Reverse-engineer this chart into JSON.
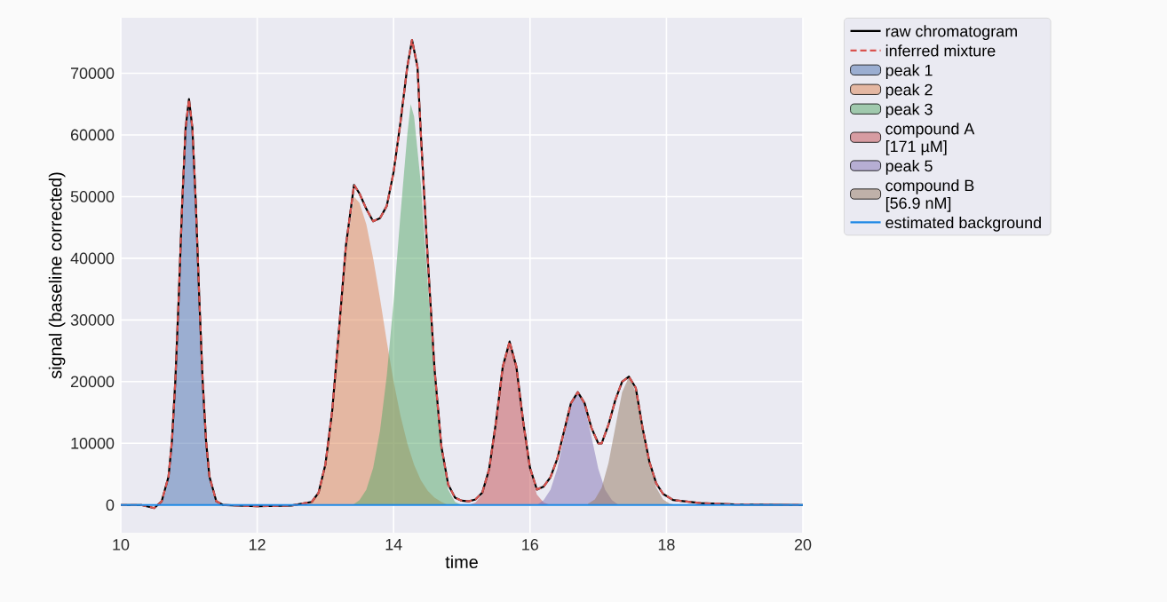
{
  "chart_data": {
    "type": "area",
    "xlabel": "time",
    "ylabel": "signal (baseline corrected)",
    "xlim": [
      10,
      20
    ],
    "ylim": [
      -4500,
      79000
    ],
    "xticks": [
      10,
      12,
      14,
      16,
      18,
      20
    ],
    "yticks": [
      0,
      10000,
      20000,
      30000,
      40000,
      50000,
      60000,
      70000
    ],
    "grid": true,
    "legend": "right",
    "series": [
      {
        "name": "raw chromatogram",
        "type": "line",
        "color": "#000000",
        "x": [
          10.0,
          10.3,
          10.49,
          10.6,
          10.7,
          10.75,
          10.8,
          10.85,
          10.9,
          10.95,
          11.0,
          11.05,
          11.1,
          11.15,
          11.2,
          11.25,
          11.3,
          11.4,
          11.5,
          12.0,
          12.5,
          12.8,
          12.9,
          13.0,
          13.1,
          13.2,
          13.3,
          13.42,
          13.5,
          13.6,
          13.7,
          13.8,
          13.9,
          14.0,
          14.1,
          14.2,
          14.27,
          14.35,
          14.4,
          14.5,
          14.6,
          14.7,
          14.8,
          14.9,
          15.0,
          15.1,
          15.2,
          15.3,
          15.4,
          15.5,
          15.6,
          15.7,
          15.8,
          15.9,
          16.0,
          16.1,
          16.2,
          16.3,
          16.4,
          16.5,
          16.6,
          16.7,
          16.8,
          16.9,
          17.0,
          17.05,
          17.15,
          17.25,
          17.35,
          17.45,
          17.55,
          17.65,
          17.75,
          17.85,
          17.95,
          18.1,
          18.5,
          19.0,
          20.0
        ],
        "values": [
          0,
          0,
          -500,
          600,
          4600,
          10400,
          20200,
          33800,
          48900,
          61100,
          65800,
          61100,
          48900,
          33800,
          20200,
          10400,
          4600,
          600,
          0,
          -200,
          -100,
          500,
          2000,
          6600,
          15300,
          28500,
          42000,
          51900,
          50500,
          48000,
          46000,
          46500,
          48500,
          54000,
          62000,
          71000,
          75400,
          71000,
          60000,
          40000,
          22000,
          9500,
          3300,
          1200,
          700,
          600,
          900,
          2000,
          5800,
          13400,
          22400,
          26500,
          22400,
          13500,
          6000,
          2500,
          3000,
          4500,
          7500,
          12000,
          16500,
          18300,
          16500,
          12500,
          10000,
          10000,
          13000,
          17000,
          20000,
          20800,
          19000,
          12500,
          7000,
          3500,
          1800,
          800,
          300,
          100,
          0
        ]
      },
      {
        "name": "inferred mixture",
        "type": "line",
        "line_style": "dashed",
        "color": "#d9534f",
        "x": [
          10.0,
          10.3,
          10.49,
          10.6,
          10.7,
          10.75,
          10.8,
          10.85,
          10.9,
          10.95,
          11.0,
          11.05,
          11.1,
          11.15,
          11.2,
          11.25,
          11.3,
          11.4,
          11.5,
          12.0,
          12.5,
          12.8,
          12.9,
          13.0,
          13.1,
          13.2,
          13.3,
          13.42,
          13.5,
          13.6,
          13.7,
          13.8,
          13.9,
          14.0,
          14.1,
          14.2,
          14.27,
          14.35,
          14.4,
          14.5,
          14.6,
          14.7,
          14.8,
          14.9,
          15.0,
          15.1,
          15.2,
          15.3,
          15.4,
          15.5,
          15.6,
          15.7,
          15.8,
          15.9,
          16.0,
          16.1,
          16.2,
          16.3,
          16.4,
          16.5,
          16.6,
          16.7,
          16.8,
          16.9,
          17.0,
          17.05,
          17.15,
          17.25,
          17.35,
          17.45,
          17.55,
          17.65,
          17.75,
          17.85,
          17.95,
          18.1,
          18.5,
          19.0,
          20.0
        ],
        "values": [
          0,
          0,
          -500,
          600,
          4600,
          10400,
          20200,
          33800,
          48900,
          61100,
          65800,
          61100,
          48900,
          33800,
          20200,
          10400,
          4600,
          600,
          0,
          -200,
          -100,
          500,
          2000,
          6600,
          15300,
          28500,
          42000,
          51900,
          50500,
          48000,
          46000,
          46500,
          48500,
          54000,
          62000,
          71000,
          75400,
          71000,
          60000,
          40000,
          22000,
          9500,
          3300,
          1200,
          700,
          600,
          900,
          2000,
          5800,
          13400,
          22400,
          26500,
          22400,
          13500,
          6000,
          2500,
          3000,
          4500,
          7500,
          12000,
          16500,
          18300,
          16500,
          12500,
          10000,
          10000,
          13000,
          17000,
          20000,
          20800,
          19000,
          12500,
          7000,
          3500,
          1800,
          800,
          300,
          100,
          0
        ]
      },
      {
        "name": "peak 1",
        "color": "#4c72b0",
        "x": [
          10.5,
          10.55,
          10.6,
          10.65,
          10.7,
          10.75,
          10.8,
          10.85,
          10.9,
          10.95,
          11.0,
          11.05,
          11.1,
          11.15,
          11.2,
          11.25,
          11.3,
          11.35,
          11.4,
          11.45,
          11.5
        ],
        "values": [
          0,
          0,
          600,
          1800,
          4600,
          10400,
          20200,
          33800,
          48900,
          61100,
          65800,
          61100,
          48900,
          33800,
          20200,
          10400,
          4600,
          1800,
          600,
          0,
          0
        ]
      },
      {
        "name": "peak 2",
        "color": "#dd8452",
        "x": [
          12.7,
          12.8,
          12.9,
          13.0,
          13.1,
          13.2,
          13.3,
          13.42,
          13.5,
          13.6,
          13.7,
          13.8,
          13.9,
          14.0,
          14.1,
          14.2,
          14.3,
          14.4,
          14.5,
          14.6,
          14.7,
          14.8
        ],
        "values": [
          0,
          500,
          2000,
          6500,
          15000,
          28000,
          41000,
          50000,
          49000,
          45500,
          40000,
          33500,
          26500,
          20000,
          14500,
          10000,
          6500,
          4000,
          2300,
          1200,
          500,
          0
        ]
      },
      {
        "name": "peak 3",
        "color": "#55a868",
        "x": [
          13.4,
          13.5,
          13.6,
          13.7,
          13.8,
          13.9,
          14.0,
          14.1,
          14.2,
          14.25,
          14.3,
          14.4,
          14.5,
          14.6,
          14.7,
          14.8,
          14.9,
          15.0
        ],
        "values": [
          0,
          800,
          2500,
          6000,
          12000,
          21000,
          33000,
          47000,
          60000,
          65000,
          63000,
          52000,
          36000,
          20000,
          8500,
          2500,
          500,
          0
        ]
      },
      {
        "name": "compound A\n[171 µM]",
        "color": "#c44e52",
        "x": [
          15.1,
          15.2,
          15.3,
          15.4,
          15.5,
          15.6,
          15.7,
          15.8,
          15.9,
          16.0,
          16.1,
          16.2,
          16.3
        ],
        "values": [
          0,
          400,
          1700,
          5500,
          13200,
          22300,
          26500,
          22300,
          13200,
          5500,
          1700,
          400,
          0
        ]
      },
      {
        "name": "peak 5",
        "color": "#8172b3",
        "x": [
          16.1,
          16.2,
          16.3,
          16.4,
          16.5,
          16.6,
          16.7,
          16.8,
          16.9,
          17.0,
          17.1,
          17.2,
          17.3
        ],
        "values": [
          0,
          800,
          2500,
          5900,
          11100,
          16100,
          18300,
          16100,
          11100,
          5900,
          2500,
          800,
          0
        ]
      },
      {
        "name": "compound B\n[56.9 nM]",
        "color": "#937860",
        "x": [
          16.85,
          16.95,
          17.05,
          17.15,
          17.25,
          17.35,
          17.45,
          17.55,
          17.65,
          17.75,
          17.85,
          17.95,
          18.05,
          18.15
        ],
        "values": [
          200,
          900,
          2800,
          6800,
          12600,
          18300,
          20800,
          18300,
          12600,
          6800,
          2800,
          900,
          200,
          0
        ]
      },
      {
        "name": "estimated background",
        "type": "line",
        "color": "#1e88e5",
        "x": [
          10,
          20
        ],
        "values": [
          0,
          0
        ]
      }
    ]
  }
}
